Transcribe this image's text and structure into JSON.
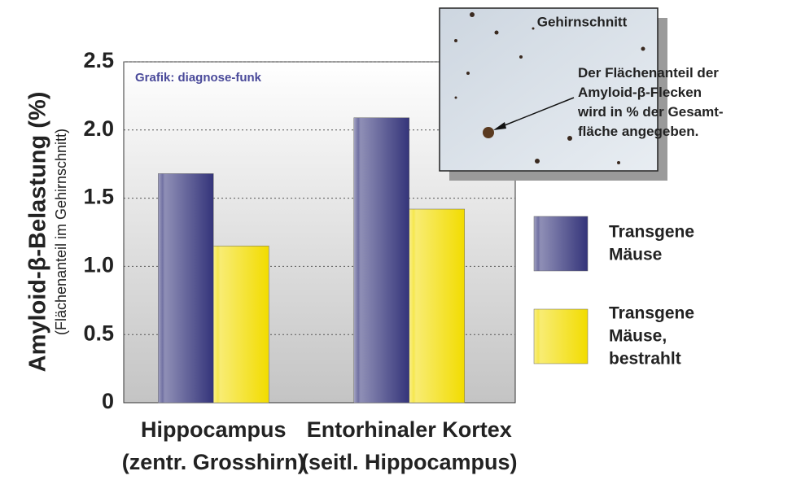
{
  "chart_data": {
    "type": "bar",
    "y_label": "Amyloid-β-Belastung (%)",
    "y_sublabel": "(Flächenanteil im Gehirnschnitt)",
    "watermark": "Grafik: diagnose-funk",
    "inset_title": "Gehirnschnitt",
    "inset_note": "Der Flächenanteil der\nAmyloid-β-Flecken\nwird in % der Gesamt-\nfläche angegeben.",
    "categories": [
      "Hippocampus\n(zentr. Grosshirn)",
      "Entorhinaler Kortex\n(seitl. Hippocampus)"
    ],
    "series": [
      {
        "name": "Transgene\nMäuse",
        "color": "#34347a",
        "values": [
          1.68,
          2.09
        ]
      },
      {
        "name": "Transgene\nMäuse,\nbestrahlt",
        "color": "#f2dc00",
        "values": [
          1.15,
          1.42
        ]
      }
    ],
    "ylim": [
      0,
      2.5
    ],
    "yticks": [
      0,
      {
        "value": 0.5,
        "label": "0.5"
      },
      {
        "value": 1,
        "label": "1.0"
      },
      {
        "value": 1.5,
        "label": "1.5"
      },
      {
        "value": 2,
        "label": "2.0"
      },
      2.5
    ],
    "grid": true
  }
}
